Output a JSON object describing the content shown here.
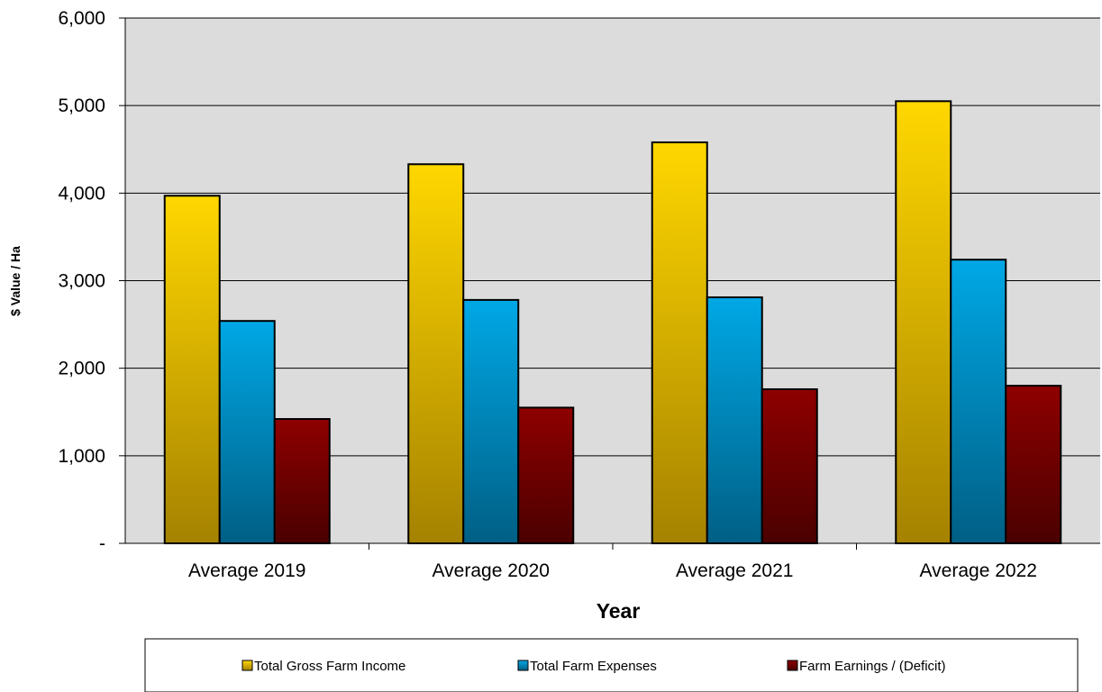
{
  "chart_data": {
    "type": "bar",
    "title": "",
    "xlabel": "Year",
    "ylabel": "$ Value / Ha",
    "categories": [
      "Average 2019",
      "Average 2020",
      "Average 2021",
      "Average 2022"
    ],
    "series": [
      {
        "name": "Total Gross Farm Income",
        "values": [
          3970,
          4330,
          4580,
          5050
        ]
      },
      {
        "name": "Total Farm Expenses",
        "values": [
          2540,
          2780,
          2810,
          3240
        ]
      },
      {
        "name": "Farm Earnings / (Deficit)",
        "values": [
          1420,
          1550,
          1760,
          1800
        ]
      }
    ],
    "ylim": [
      0,
      6000
    ],
    "yticks": [
      {
        "value": 0,
        "label": "-"
      },
      {
        "value": 1000,
        "label": "1,000"
      },
      {
        "value": 2000,
        "label": "2,000"
      },
      {
        "value": 3000,
        "label": "3,000"
      },
      {
        "value": 4000,
        "label": "4,000"
      },
      {
        "value": 5000,
        "label": "5,000"
      },
      {
        "value": 6000,
        "label": "6,000"
      }
    ],
    "grid": true,
    "legend_position": "bottom",
    "colors": {
      "series": [
        {
          "light": "#ffd700",
          "dark": "#a58200"
        },
        {
          "light": "#00a8e6",
          "dark": "#005f85"
        },
        {
          "light": "#8e0000",
          "dark": "#4a0000"
        }
      ],
      "plot_background": "#dcdcdc",
      "gridline": "#000000"
    }
  }
}
